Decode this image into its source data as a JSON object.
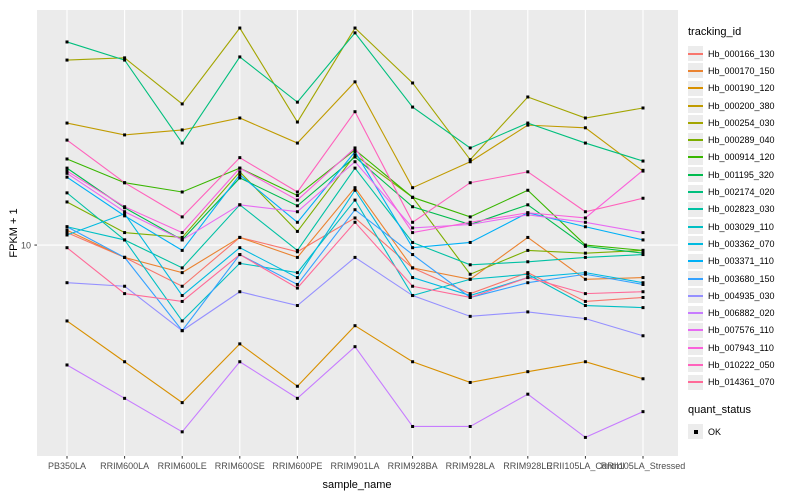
{
  "chart_data": {
    "type": "line",
    "title": "",
    "xlabel": "sample_name",
    "ylabel": "FPKM + 1",
    "y_scale": "log10",
    "ylim_log": [
      0.3,
      1.78
    ],
    "grid": true,
    "panel_bg": "#EBEBEB",
    "grid_color": "#FFFFFF",
    "tick_color": "#333333",
    "point_color": "#000000",
    "y_ticks": [
      {
        "value": 10,
        "label": "10"
      }
    ],
    "categories": [
      "PB350LA",
      "RRIM600LA",
      "RRIM600LE",
      "RRIM600SE",
      "RRIM600PE",
      "RRIM901LA",
      "RRIM928BA",
      "RRIM928LA",
      "RRIM928LE",
      "RRII105LA_Control",
      "RRII105LA_Stressed"
    ],
    "legend": {
      "color_title": "tracking_id",
      "shape_title": "quant_status",
      "shape_items": [
        {
          "label": "OK"
        }
      ],
      "position": "right"
    },
    "series": [
      {
        "name": "Hb_000166_130",
        "color": "#F8766D",
        "values": [
          11.0,
          9.1,
          7.3,
          10.6,
          9.5,
          12.3,
          8.4,
          6.9,
          8.1,
          6.5,
          6.7
        ]
      },
      {
        "name": "Hb_000170_150",
        "color": "#EA8331",
        "values": [
          11.2,
          9.1,
          8.1,
          10.6,
          9.1,
          15.5,
          8.4,
          7.7,
          10.6,
          7.7,
          7.8
        ]
      },
      {
        "name": "Hb_000190_120",
        "color": "#D89000",
        "values": [
          5.6,
          4.1,
          3.0,
          4.7,
          3.4,
          5.4,
          4.1,
          3.5,
          3.8,
          4.1,
          3.6
        ]
      },
      {
        "name": "Hb_000200_380",
        "color": "#C09B00",
        "values": [
          25.4,
          23.2,
          24.1,
          26.4,
          21.8,
          34.8,
          15.5,
          18.9,
          25.0,
          24.5,
          17.6
        ]
      },
      {
        "name": "Hb_000254_030",
        "color": "#A3A500",
        "values": [
          41.1,
          41.8,
          29.4,
          52.5,
          25.6,
          52.5,
          34.5,
          19.2,
          31.0,
          26.4,
          28.5
        ]
      },
      {
        "name": "Hb_000289_040",
        "color": "#7CAE00",
        "values": [
          13.9,
          11.0,
          10.6,
          17.5,
          11.1,
          19.9,
          14.4,
          8.0,
          9.6,
          9.4,
          9.6
        ]
      },
      {
        "name": "Hb_000914_120",
        "color": "#39B600",
        "values": [
          19.3,
          16.1,
          15.0,
          18.0,
          14.6,
          20.7,
          14.4,
          12.4,
          15.2,
          10.0,
          9.6
        ]
      },
      {
        "name": "Hb_001195_320",
        "color": "#00BB4E",
        "values": [
          18.0,
          13.3,
          10.4,
          16.7,
          13.5,
          19.6,
          13.4,
          11.7,
          13.6,
          9.9,
          9.4
        ]
      },
      {
        "name": "Hb_002174_020",
        "color": "#00BF7D",
        "values": [
          47.2,
          41.1,
          21.8,
          42.1,
          29.8,
          50.6,
          28.7,
          21.0,
          25.4,
          21.8,
          19.0
        ]
      },
      {
        "name": "Hb_002823_030",
        "color": "#00C1A3",
        "values": [
          14.9,
          10.4,
          8.4,
          13.6,
          9.6,
          18.0,
          10.2,
          8.6,
          8.8,
          9.1,
          9.3
        ]
      },
      {
        "name": "Hb_003029_110",
        "color": "#00BFC4",
        "values": [
          11.5,
          10.4,
          5.6,
          8.7,
          8.1,
          14.1,
          6.8,
          7.7,
          8.0,
          6.3,
          6.2
        ]
      },
      {
        "name": "Hb_003362_070",
        "color": "#00BAE0",
        "values": [
          10.8,
          12.7,
          6.8,
          9.8,
          7.8,
          15.2,
          7.8,
          6.8,
          7.8,
          8.1,
          7.5
        ]
      },
      {
        "name": "Hb_003371_110",
        "color": "#00B0F6",
        "values": [
          16.8,
          12.5,
          9.6,
          17.1,
          11.9,
          20.4,
          9.8,
          10.2,
          12.8,
          11.5,
          10.4
        ]
      },
      {
        "name": "Hb_003680_150",
        "color": "#35A2FF",
        "values": [
          11.5,
          9.1,
          5.2,
          9.3,
          7.4,
          13.1,
          9.3,
          6.7,
          7.5,
          8.0,
          7.4
        ]
      },
      {
        "name": "Hb_004935_030",
        "color": "#9590FF",
        "values": [
          7.5,
          7.3,
          5.2,
          7.0,
          6.3,
          9.1,
          6.8,
          5.8,
          6.0,
          5.7,
          5.0
        ]
      },
      {
        "name": "Hb_006882_020",
        "color": "#C77CFF",
        "values": [
          4.0,
          3.1,
          2.4,
          4.1,
          3.1,
          4.6,
          2.5,
          2.5,
          3.2,
          2.3,
          2.8
        ]
      },
      {
        "name": "Hb_007576_110",
        "color": "#E76BF3",
        "values": [
          17.3,
          12.9,
          10.4,
          13.6,
          12.9,
          18.9,
          11.4,
          11.7,
          12.6,
          11.9,
          11.0
        ]
      },
      {
        "name": "Hb_007943_110",
        "color": "#FA62DB",
        "values": [
          17.6,
          13.4,
          11.0,
          18.0,
          14.1,
          21.0,
          11.0,
          11.9,
          12.8,
          12.3,
          17.7
        ]
      },
      {
        "name": "Hb_010222_050",
        "color": "#FF62BC",
        "values": [
          22.3,
          16.1,
          12.4,
          19.5,
          15.0,
          27.7,
          11.9,
          16.1,
          17.5,
          12.9,
          14.3
        ]
      },
      {
        "name": "Hb_014361_070",
        "color": "#FF6A98",
        "values": [
          9.8,
          6.9,
          6.5,
          9.3,
          7.2,
          11.9,
          7.3,
          6.7,
          7.8,
          6.9,
          7.0
        ]
      }
    ]
  }
}
